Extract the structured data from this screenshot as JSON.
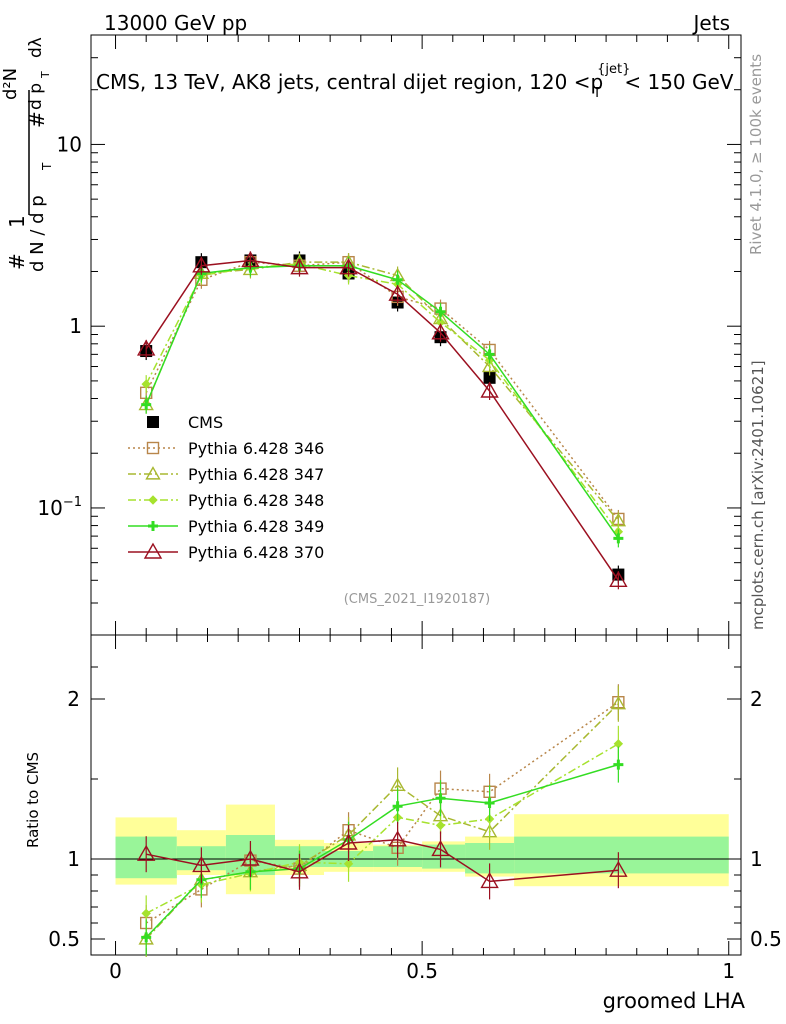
{
  "header": {
    "left": "13000 GeV pp",
    "right": "Jets"
  },
  "title": "CMS, 13 TeV, AK8 jets, central dijet region, 120 <",
  "title_pt": "p",
  "title_sub": "T",
  "title_sup": "{jet}",
  "title_tail": "< 150 GeV",
  "ylabel_parts": {
    "hash1": "#",
    "one": "1",
    "dN": "d N / d p",
    "T": "T",
    "hash2": "#",
    "d2N": "d²N",
    "dpT": "d p",
    "T2": "T",
    "dl": "dλ"
  },
  "rivet_label": "Rivet 4.1.0, ≥ 100k events",
  "mcplots_label": "mcplots.cern.ch [arXiv:2401.10621]",
  "analysis_label": "(CMS_2021_I1920187)",
  "ratio_ylabel": "Ratio to CMS",
  "xlabel": "groomed LHA",
  "chart_data": [
    {
      "type": "scatter",
      "panel": "main",
      "yscale": "log",
      "ylim": [
        0.02,
        40
      ],
      "xlim": [
        -0.04,
        1.02
      ],
      "x": [
        0.05,
        0.14,
        0.22,
        0.3,
        0.38,
        0.46,
        0.53,
        0.61,
        0.82
      ],
      "y_tick_labels": [
        "10^-1",
        "1",
        "10"
      ],
      "x_tick_labels": [
        "0",
        "0.5",
        "1"
      ],
      "series": [
        {
          "name": "CMS",
          "color": "#000000",
          "style": "square-filled",
          "values": [
            0.73,
            2.25,
            2.3,
            2.3,
            1.95,
            1.35,
            0.87,
            0.52,
            0.043
          ]
        },
        {
          "name": "Pythia 6.428 346",
          "color": "#b8864a",
          "style": "square-open-dotted",
          "values": [
            0.43,
            1.8,
            2.25,
            2.15,
            2.25,
            1.45,
            1.25,
            0.74,
            0.087
          ]
        },
        {
          "name": "Pythia 6.428 347",
          "color": "#a8b830",
          "style": "triangle-open-dashdot",
          "values": [
            0.37,
            1.95,
            2.05,
            2.25,
            2.25,
            1.9,
            1.1,
            0.6,
            0.085
          ]
        },
        {
          "name": "Pythia 6.428 348",
          "color": "#a6e22e",
          "style": "diamond-dashdot",
          "values": [
            0.48,
            1.9,
            2.1,
            2.2,
            1.9,
            1.7,
            1.05,
            0.65,
            0.074
          ]
        },
        {
          "name": "Pythia 6.428 349",
          "color": "#33dd22",
          "style": "cross-solid",
          "values": [
            0.37,
            1.95,
            2.1,
            2.15,
            2.15,
            1.8,
            1.2,
            0.7,
            0.068
          ]
        },
        {
          "name": "Pythia 6.428 370",
          "color": "#9b1020",
          "style": "triangle-open-solid",
          "values": [
            0.75,
            2.15,
            2.3,
            2.1,
            2.1,
            1.5,
            0.92,
            0.44,
            0.04
          ]
        }
      ]
    },
    {
      "type": "scatter",
      "panel": "ratio",
      "ylim": [
        0.4,
        2.4
      ],
      "xlim": [
        -0.04,
        1.02
      ],
      "x": [
        0.05,
        0.14,
        0.22,
        0.3,
        0.38,
        0.46,
        0.53,
        0.61,
        0.82
      ],
      "y_tick_labels": [
        "0.5",
        "1",
        "2"
      ],
      "band_edges": [
        0,
        0.1,
        0.18,
        0.26,
        0.34,
        0.42,
        0.5,
        0.57,
        0.65,
        1.0
      ],
      "band_green": [
        [
          0.88,
          1.14
        ],
        [
          0.93,
          1.08
        ],
        [
          0.9,
          1.15
        ],
        [
          0.95,
          1.08
        ],
        [
          0.95,
          1.05
        ],
        [
          0.95,
          1.08
        ],
        [
          0.94,
          1.09
        ],
        [
          0.91,
          1.1
        ],
        [
          0.91,
          1.14
        ]
      ],
      "band_yellow": [
        [
          0.84,
          1.26
        ],
        [
          0.9,
          1.18
        ],
        [
          0.78,
          1.34
        ],
        [
          0.9,
          1.12
        ],
        [
          0.92,
          1.1
        ],
        [
          0.92,
          1.09
        ],
        [
          0.92,
          1.11
        ],
        [
          0.89,
          1.14
        ],
        [
          0.83,
          1.28
        ]
      ],
      "series": [
        {
          "name": "Pythia 6.428 346",
          "values": [
            0.6,
            0.81,
            0.99,
            0.94,
            1.18,
            1.07,
            1.44,
            1.42,
            1.98
          ]
        },
        {
          "name": "Pythia 6.428 347",
          "values": [
            0.5,
            0.87,
            0.92,
            0.96,
            1.15,
            1.46,
            1.27,
            1.17,
            1.97
          ]
        },
        {
          "name": "Pythia 6.428 348",
          "values": [
            0.66,
            0.84,
            0.91,
            0.98,
            0.97,
            1.26,
            1.21,
            1.25,
            1.72
          ]
        },
        {
          "name": "Pythia 6.428 349",
          "values": [
            0.51,
            0.87,
            0.92,
            0.94,
            1.12,
            1.33,
            1.38,
            1.35,
            1.59
          ]
        },
        {
          "name": "Pythia 6.428 370",
          "values": [
            1.03,
            0.96,
            1.0,
            0.92,
            1.1,
            1.12,
            1.06,
            0.86,
            0.93
          ]
        }
      ]
    }
  ]
}
